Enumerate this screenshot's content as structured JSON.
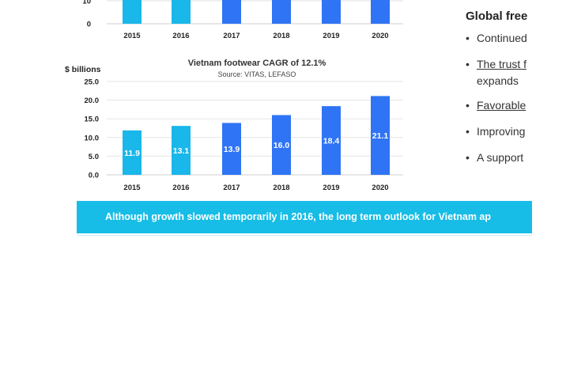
{
  "chart_data": [
    {
      "type": "bar",
      "title": "",
      "categories": [
        "2015",
        "2016",
        "2017",
        "2018",
        "2019",
        "2020"
      ],
      "y_ticks": [
        "10",
        "0"
      ],
      "ylim": [
        0,
        10
      ],
      "grid": true,
      "bar_colors": [
        "#19b7ea",
        "#19b7ea",
        "#2f74f5",
        "#2f74f5",
        "#2f74f5",
        "#2f74f5"
      ]
    },
    {
      "type": "bar",
      "title": "Vietnam footwear CAGR of 12.1%",
      "subtitle": "Source:  VITAS, LEFASO",
      "ylabel": "$ billions",
      "categories": [
        "2015",
        "2016",
        "2017",
        "2018",
        "2019",
        "2020"
      ],
      "values": [
        11.9,
        13.1,
        13.9,
        16.0,
        18.4,
        21.1
      ],
      "value_labels": [
        "11.9",
        "13.1",
        "13.9",
        "16.0",
        "18.4",
        "21.1"
      ],
      "y_ticks": [
        "0.0",
        "5.0",
        "10.0",
        "15.0",
        "20.0",
        "25.0"
      ],
      "ylim": [
        0,
        25
      ],
      "grid": true,
      "bar_colors": [
        "#19b7ea",
        "#19b7ea",
        "#2f74f5",
        "#2f74f5",
        "#2f74f5",
        "#2f74f5"
      ]
    }
  ],
  "panel": {
    "heading": "Global free",
    "bullets": [
      {
        "text": "Continued",
        "underline": false
      },
      {
        "text": "The trust f",
        "cont": "expands",
        "underline": true
      },
      {
        "text": "Favorable",
        "underline": true
      },
      {
        "text": "Improving",
        "underline": false
      },
      {
        "text": "A support",
        "underline": false
      }
    ]
  },
  "banner": {
    "text": "Although growth slowed temporarily in 2016, the long term outlook for Vietnam ap"
  },
  "colors": {
    "banner_bg": "#17bde6",
    "bar_light": "#19b7ea",
    "bar_dark": "#2f74f5"
  }
}
